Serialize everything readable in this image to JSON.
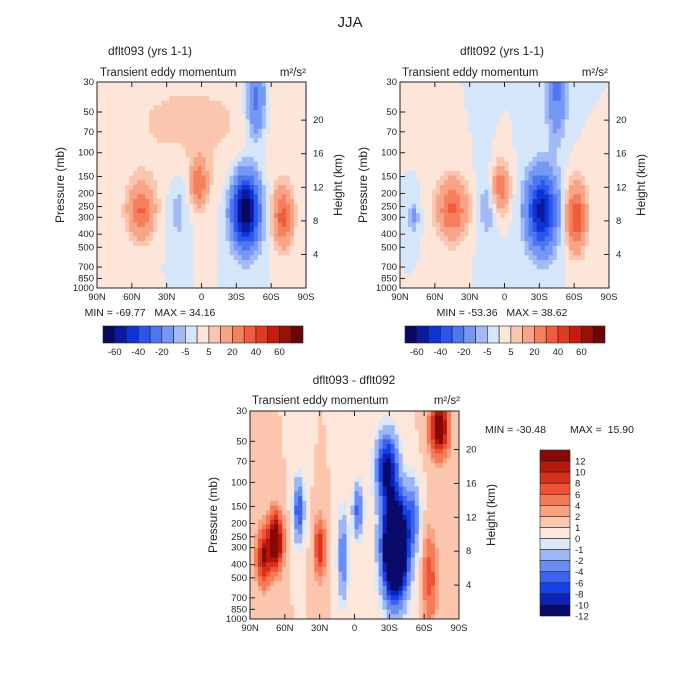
{
  "figure": {
    "title": "JJA"
  },
  "chart_data": [
    {
      "type": "heatmap",
      "id": "p1",
      "title": "dflt093 (yrs 1-1)",
      "subtitle": "Transient eddy momentum",
      "units": "m²/s²",
      "xlabel": "",
      "ylabel": "Pressure (mb)",
      "y2label": "Height (km)",
      "x_ticks": [
        "90N",
        "60N",
        "30N",
        "0",
        "30S",
        "60S",
        "90S"
      ],
      "y_ticks": [
        "30",
        "50",
        "70",
        "100",
        "150",
        "200",
        "250",
        "300",
        "400",
        "500",
        "700",
        "850",
        "1000"
      ],
      "y2_ticks": [
        "20",
        "16",
        "12",
        "8",
        "4"
      ],
      "min_label": "MIN = -69.77",
      "max_label": "MAX = 34.16",
      "colorbar_levels": [
        -70,
        -60,
        -50,
        -40,
        -30,
        -20,
        -10,
        -5,
        0,
        5,
        10,
        20,
        30,
        40,
        50,
        60,
        70
      ],
      "colorbar_labels": [
        "-60",
        "-40",
        "-20",
        "-5",
        "5",
        "20",
        "40",
        "60"
      ],
      "features": [
        {
          "lat": 52,
          "p": 270,
          "sx": 8,
          "sy": 0.32,
          "amp": 30
        },
        {
          "lat": 2,
          "p": 170,
          "sx": 5,
          "sy": 0.28,
          "amp": 26
        },
        {
          "lat": -70,
          "p": 300,
          "sx": 6,
          "sy": 0.35,
          "amp": 33
        },
        {
          "lat": -38,
          "p": 270,
          "sx": 8,
          "sy": 0.42,
          "amp": -72
        },
        {
          "lat": -47,
          "p": 40,
          "sx": 6,
          "sy": 0.5,
          "amp": -25
        },
        {
          "lat": 20,
          "p": 260,
          "sx": 6,
          "sy": 0.45,
          "amp": -8
        },
        {
          "lat": 10,
          "p": 60,
          "sx": 60,
          "sy": 0.8,
          "amp": 6
        }
      ]
    },
    {
      "type": "heatmap",
      "id": "p2",
      "title": "dflt092 (yrs 1-1)",
      "subtitle": "Transient eddy momentum",
      "units": "m²/s²",
      "xlabel": "",
      "ylabel": "Pressure (mb)",
      "y2label": "Height (km)",
      "x_ticks": [
        "90N",
        "60N",
        "30N",
        "0",
        "30S",
        "60S",
        "90S"
      ],
      "y_ticks": [
        "30",
        "50",
        "70",
        "100",
        "150",
        "200",
        "250",
        "300",
        "400",
        "500",
        "700",
        "850",
        "1000"
      ],
      "y2_ticks": [
        "20",
        "16",
        "12",
        "8",
        "4"
      ],
      "min_label": "MIN = -53.36",
      "max_label": "MAX = 38.62",
      "colorbar_levels": [
        -70,
        -60,
        -50,
        -40,
        -30,
        -20,
        -10,
        -5,
        0,
        5,
        10,
        20,
        30,
        40,
        50,
        60,
        70
      ],
      "colorbar_labels": [
        "-60",
        "-40",
        "-20",
        "-5",
        "5",
        "20",
        "40",
        "60"
      ],
      "features": [
        {
          "lat": 45,
          "p": 260,
          "sx": 9,
          "sy": 0.35,
          "amp": 32
        },
        {
          "lat": 3,
          "p": 180,
          "sx": 5,
          "sy": 0.28,
          "amp": 28
        },
        {
          "lat": -62,
          "p": 300,
          "sx": 6,
          "sy": 0.38,
          "amp": 39
        },
        {
          "lat": -32,
          "p": 270,
          "sx": 9,
          "sy": 0.45,
          "amp": -55
        },
        {
          "lat": -45,
          "p": 35,
          "sx": 6,
          "sy": 0.55,
          "amp": -22
        },
        {
          "lat": 78,
          "p": 300,
          "sx": 3,
          "sy": 0.2,
          "amp": -12
        },
        {
          "lat": 15,
          "p": 250,
          "sx": 6,
          "sy": 0.45,
          "amp": -8
        }
      ]
    },
    {
      "type": "heatmap",
      "id": "p3",
      "title": "dflt093 - dflt092",
      "subtitle": "Transient eddy momentum",
      "units": "m²/s²",
      "xlabel": "",
      "ylabel": "Pressure (mb)",
      "y2label": "Height (km)",
      "x_ticks": [
        "90N",
        "60N",
        "30N",
        "0",
        "30S",
        "60S",
        "90S"
      ],
      "y_ticks": [
        "30",
        "50",
        "70",
        "100",
        "150",
        "200",
        "250",
        "300",
        "400",
        "500",
        "700",
        "850",
        "1000"
      ],
      "y2_ticks": [
        "20",
        "16",
        "12",
        "8",
        "4"
      ],
      "min_label": "MIN = -30.48",
      "max_label": "MAX =  15.90",
      "colorbar_levels": [
        -14,
        -12,
        -10,
        -8,
        -6,
        -4,
        -2,
        -1,
        0,
        1,
        2,
        4,
        6,
        8,
        10,
        12,
        14
      ],
      "colorbar_labels": [
        "12",
        "10",
        "8",
        "6",
        "4",
        "2",
        "1",
        "0",
        "-1",
        "-2",
        "-4",
        "-6",
        "-8",
        "-10",
        "-12"
      ],
      "features": [
        {
          "lat": 68,
          "p": 270,
          "sx": 4,
          "sy": 0.3,
          "amp": 15
        },
        {
          "lat": 78,
          "p": 350,
          "sx": 4,
          "sy": 0.3,
          "amp": 10
        },
        {
          "lat": 48,
          "p": 160,
          "sx": 3,
          "sy": 0.35,
          "amp": -8
        },
        {
          "lat": 30,
          "p": 300,
          "sx": 3,
          "sy": 0.3,
          "amp": 8
        },
        {
          "lat": 10,
          "p": 350,
          "sx": 3,
          "sy": 0.5,
          "amp": -6
        },
        {
          "lat": -3,
          "p": 160,
          "sx": 3,
          "sy": 0.3,
          "amp": -7
        },
        {
          "lat": -35,
          "p": 300,
          "sx": 7,
          "sy": 0.55,
          "amp": -30
        },
        {
          "lat": -28,
          "p": 80,
          "sx": 6,
          "sy": 0.4,
          "amp": -13
        },
        {
          "lat": -73,
          "p": 40,
          "sx": 5,
          "sy": 0.3,
          "amp": 14
        },
        {
          "lat": -65,
          "p": 500,
          "sx": 4,
          "sy": 0.5,
          "amp": 5
        },
        {
          "lat": -50,
          "p": 180,
          "sx": 4,
          "sy": 0.4,
          "amp": -6
        }
      ]
    }
  ]
}
